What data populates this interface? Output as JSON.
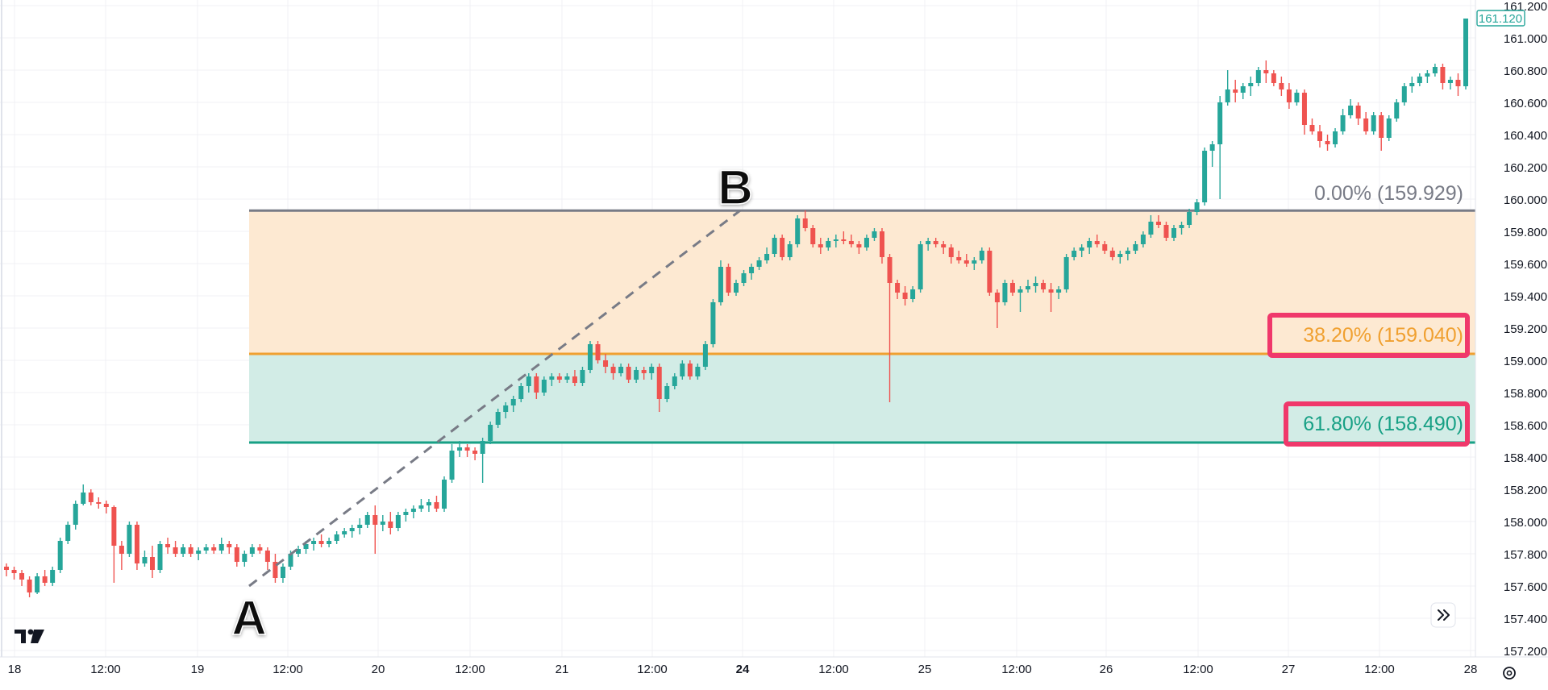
{
  "chart_data": {
    "type": "candlestick",
    "instrument_price_label": "161.120",
    "y_axis": {
      "min": 157.2,
      "max": 161.2,
      "ticks": [
        "161.200",
        "161.000",
        "160.800",
        "160.600",
        "160.400",
        "160.200",
        "160.000",
        "159.800",
        "159.600",
        "159.400",
        "159.200",
        "159.000",
        "158.800",
        "158.600",
        "158.400",
        "158.200",
        "158.000",
        "157.800",
        "157.600",
        "157.400",
        "157.200"
      ]
    },
    "x_axis": {
      "ticks": [
        {
          "label": "18",
          "bold": false
        },
        {
          "label": "12:00",
          "bold": false
        },
        {
          "label": "19",
          "bold": false
        },
        {
          "label": "12:00",
          "bold": false
        },
        {
          "label": "20",
          "bold": false
        },
        {
          "label": "12:00",
          "bold": false
        },
        {
          "label": "21",
          "bold": false
        },
        {
          "label": "12:00",
          "bold": false
        },
        {
          "label": "24",
          "bold": true
        },
        {
          "label": "12:00",
          "bold": false
        },
        {
          "label": "25",
          "bold": false
        },
        {
          "label": "12:00",
          "bold": false
        },
        {
          "label": "26",
          "bold": false
        },
        {
          "label": "12:00",
          "bold": false
        },
        {
          "label": "27",
          "bold": false
        },
        {
          "label": "12:00",
          "bold": false
        },
        {
          "label": "28",
          "bold": false
        }
      ]
    },
    "fibonacci": {
      "point_a": {
        "label": "A",
        "price": 157.6
      },
      "point_b": {
        "label": "B",
        "price": 159.929
      },
      "levels": [
        {
          "label": "0.00% (159.929)",
          "price": 159.929,
          "color": "#787b86",
          "highlight": false
        },
        {
          "label": "38.20% (159.040)",
          "price": 159.04,
          "color": "#f0a030",
          "highlight": true
        },
        {
          "label": "61.80% (158.490)",
          "price": 158.49,
          "color": "#17a085",
          "highlight": true
        }
      ],
      "zone_colors": [
        "#fde9d2",
        "#d2ece6"
      ]
    },
    "colors": {
      "up": "#26a69a",
      "down": "#ef5350",
      "highlight_box": "#f0386b",
      "price_label": "#26a69a"
    },
    "candles": [
      [
        157.72,
        157.74,
        157.66,
        157.7
      ],
      [
        157.7,
        157.72,
        157.64,
        157.68
      ],
      [
        157.68,
        157.7,
        157.6,
        157.64
      ],
      [
        157.64,
        157.66,
        157.53,
        157.56
      ],
      [
        157.56,
        157.68,
        157.55,
        157.66
      ],
      [
        157.66,
        157.7,
        157.6,
        157.62
      ],
      [
        157.62,
        157.72,
        157.6,
        157.7
      ],
      [
        157.7,
        157.9,
        157.68,
        157.88
      ],
      [
        157.88,
        158.0,
        157.86,
        157.98
      ],
      [
        157.98,
        158.13,
        157.95,
        158.11
      ],
      [
        158.11,
        158.23,
        158.1,
        158.18
      ],
      [
        158.18,
        158.2,
        158.1,
        158.12
      ],
      [
        158.12,
        158.15,
        158.08,
        158.11
      ],
      [
        158.11,
        158.13,
        158.05,
        158.09
      ],
      [
        158.09,
        158.1,
        157.62,
        157.85
      ],
      [
        157.85,
        157.88,
        157.7,
        157.8
      ],
      [
        157.8,
        158.0,
        157.78,
        157.98
      ],
      [
        157.98,
        158.0,
        157.7,
        157.74
      ],
      [
        157.74,
        157.82,
        157.72,
        157.78
      ],
      [
        157.78,
        157.85,
        157.65,
        157.7
      ],
      [
        157.7,
        157.88,
        157.68,
        157.86
      ],
      [
        157.86,
        157.9,
        157.8,
        157.84
      ],
      [
        157.84,
        157.88,
        157.78,
        157.8
      ],
      [
        157.8,
        157.86,
        157.78,
        157.84
      ],
      [
        157.84,
        157.86,
        157.78,
        157.8
      ],
      [
        157.8,
        157.84,
        157.76,
        157.82
      ],
      [
        157.82,
        157.86,
        157.8,
        157.84
      ],
      [
        157.84,
        157.86,
        157.8,
        157.82
      ],
      [
        157.82,
        157.9,
        157.8,
        157.86
      ],
      [
        157.86,
        157.88,
        157.8,
        157.84
      ],
      [
        157.84,
        157.86,
        157.72,
        157.75
      ],
      [
        157.75,
        157.82,
        157.72,
        157.8
      ],
      [
        157.8,
        157.86,
        157.78,
        157.84
      ],
      [
        157.84,
        157.86,
        157.8,
        157.82
      ],
      [
        157.82,
        157.84,
        157.7,
        157.75
      ],
      [
        157.75,
        157.8,
        157.62,
        157.65
      ],
      [
        157.65,
        157.74,
        157.62,
        157.72
      ],
      [
        157.72,
        157.82,
        157.7,
        157.8
      ],
      [
        157.8,
        157.85,
        157.78,
        157.83
      ],
      [
        157.83,
        157.88,
        157.8,
        157.86
      ],
      [
        157.86,
        157.9,
        157.82,
        157.88
      ],
      [
        157.88,
        157.92,
        157.84,
        157.86
      ],
      [
        157.86,
        157.9,
        157.84,
        157.88
      ],
      [
        157.88,
        157.94,
        157.86,
        157.92
      ],
      [
        157.92,
        157.96,
        157.9,
        157.94
      ],
      [
        157.94,
        157.98,
        157.9,
        157.96
      ],
      [
        157.96,
        158.02,
        157.92,
        157.98
      ],
      [
        157.98,
        158.06,
        157.96,
        158.04
      ],
      [
        158.04,
        158.1,
        157.8,
        157.98
      ],
      [
        157.98,
        158.04,
        157.94,
        158.0
      ],
      [
        158.0,
        158.06,
        157.92,
        157.96
      ],
      [
        157.96,
        158.06,
        157.94,
        158.04
      ],
      [
        158.04,
        158.08,
        158.0,
        158.06
      ],
      [
        158.06,
        158.1,
        158.02,
        158.08
      ],
      [
        158.08,
        158.14,
        158.06,
        158.1
      ],
      [
        158.1,
        158.14,
        158.06,
        158.12
      ],
      [
        158.12,
        158.16,
        158.06,
        158.08
      ],
      [
        158.08,
        158.28,
        158.06,
        158.26
      ],
      [
        158.26,
        158.48,
        158.24,
        158.44
      ],
      [
        158.44,
        158.5,
        158.4,
        158.46
      ],
      [
        158.46,
        158.48,
        158.4,
        158.44
      ],
      [
        158.44,
        158.46,
        158.38,
        158.42
      ],
      [
        158.42,
        158.52,
        158.24,
        158.5
      ],
      [
        158.5,
        158.62,
        158.48,
        158.6
      ],
      [
        158.6,
        158.7,
        158.58,
        158.68
      ],
      [
        158.68,
        158.74,
        158.64,
        158.72
      ],
      [
        158.72,
        158.78,
        158.68,
        158.76
      ],
      [
        158.76,
        158.86,
        158.74,
        158.84
      ],
      [
        158.84,
        158.92,
        158.8,
        158.9
      ],
      [
        158.9,
        158.92,
        158.76,
        158.8
      ],
      [
        158.8,
        158.9,
        158.78,
        158.88
      ],
      [
        158.88,
        158.92,
        158.84,
        158.9
      ],
      [
        158.9,
        158.92,
        158.86,
        158.88
      ],
      [
        158.88,
        158.92,
        158.86,
        158.9
      ],
      [
        158.9,
        158.94,
        158.84,
        158.86
      ],
      [
        158.86,
        158.96,
        158.84,
        158.94
      ],
      [
        158.94,
        159.12,
        158.92,
        159.1
      ],
      [
        159.1,
        159.12,
        158.98,
        159.0
      ],
      [
        159.0,
        159.04,
        158.92,
        158.96
      ],
      [
        158.96,
        158.98,
        158.88,
        158.92
      ],
      [
        158.92,
        158.98,
        158.9,
        158.96
      ],
      [
        158.96,
        158.98,
        158.86,
        158.88
      ],
      [
        158.88,
        158.96,
        158.86,
        158.94
      ],
      [
        158.94,
        158.96,
        158.88,
        158.92
      ],
      [
        158.92,
        158.98,
        158.88,
        158.96
      ],
      [
        158.96,
        158.98,
        158.68,
        158.76
      ],
      [
        158.76,
        158.86,
        158.74,
        158.84
      ],
      [
        158.84,
        158.92,
        158.82,
        158.9
      ],
      [
        158.9,
        159.0,
        158.88,
        158.98
      ],
      [
        158.98,
        159.0,
        158.88,
        158.9
      ],
      [
        158.9,
        158.98,
        158.88,
        158.96
      ],
      [
        158.96,
        159.12,
        158.94,
        159.1
      ],
      [
        159.1,
        159.38,
        159.08,
        159.36
      ],
      [
        159.36,
        159.62,
        159.34,
        159.58
      ],
      [
        159.58,
        159.6,
        159.4,
        159.42
      ],
      [
        159.42,
        159.5,
        159.4,
        159.48
      ],
      [
        159.48,
        159.56,
        159.46,
        159.54
      ],
      [
        159.54,
        159.6,
        159.5,
        159.58
      ],
      [
        159.58,
        159.64,
        159.56,
        159.62
      ],
      [
        159.62,
        159.7,
        159.6,
        159.66
      ],
      [
        159.66,
        159.78,
        159.64,
        159.76
      ],
      [
        159.76,
        159.78,
        159.62,
        159.64
      ],
      [
        159.64,
        159.74,
        159.62,
        159.72
      ],
      [
        159.72,
        159.9,
        159.7,
        159.88
      ],
      [
        159.88,
        159.93,
        159.8,
        159.82
      ],
      [
        159.82,
        159.84,
        159.7,
        159.72
      ],
      [
        159.72,
        159.76,
        159.66,
        159.7
      ],
      [
        159.7,
        159.76,
        159.68,
        159.74
      ],
      [
        159.74,
        159.78,
        159.7,
        159.75
      ],
      [
        159.75,
        159.8,
        159.72,
        159.74
      ],
      [
        159.74,
        159.78,
        159.7,
        159.72
      ],
      [
        159.72,
        159.74,
        159.66,
        159.7
      ],
      [
        159.7,
        159.78,
        159.68,
        159.76
      ],
      [
        159.76,
        159.82,
        159.74,
        159.8
      ],
      [
        159.8,
        159.82,
        159.6,
        159.64
      ],
      [
        159.64,
        159.66,
        158.74,
        159.48
      ],
      [
        159.48,
        159.5,
        159.38,
        159.42
      ],
      [
        159.42,
        159.46,
        159.34,
        159.38
      ],
      [
        159.38,
        159.46,
        159.36,
        159.44
      ],
      [
        159.44,
        159.74,
        159.42,
        159.72
      ],
      [
        159.72,
        159.76,
        159.68,
        159.74
      ],
      [
        159.74,
        159.76,
        159.7,
        159.72
      ],
      [
        159.72,
        159.74,
        159.66,
        159.7
      ],
      [
        159.7,
        159.72,
        159.6,
        159.64
      ],
      [
        159.64,
        159.68,
        159.6,
        159.62
      ],
      [
        159.62,
        159.66,
        159.58,
        159.6
      ],
      [
        159.6,
        159.64,
        159.56,
        159.62
      ],
      [
        159.62,
        159.7,
        159.6,
        159.68
      ],
      [
        159.68,
        159.7,
        159.4,
        159.42
      ],
      [
        159.42,
        159.44,
        159.2,
        159.36
      ],
      [
        159.36,
        159.5,
        159.34,
        159.48
      ],
      [
        159.48,
        159.5,
        159.4,
        159.42
      ],
      [
        159.42,
        159.46,
        159.3,
        159.44
      ],
      [
        159.44,
        159.5,
        159.42,
        159.46
      ],
      [
        159.46,
        159.52,
        159.42,
        159.48
      ],
      [
        159.48,
        159.5,
        159.42,
        159.44
      ],
      [
        159.44,
        159.48,
        159.3,
        159.42
      ],
      [
        159.42,
        159.46,
        159.38,
        159.44
      ],
      [
        159.44,
        159.66,
        159.42,
        159.64
      ],
      [
        159.64,
        159.7,
        159.62,
        159.68
      ],
      [
        159.68,
        159.72,
        159.64,
        159.7
      ],
      [
        159.7,
        159.76,
        159.66,
        159.74
      ],
      [
        159.74,
        159.78,
        159.7,
        159.72
      ],
      [
        159.72,
        159.74,
        159.66,
        159.68
      ],
      [
        159.68,
        159.7,
        159.62,
        159.64
      ],
      [
        159.64,
        159.68,
        159.6,
        159.66
      ],
      [
        159.66,
        159.7,
        159.62,
        159.68
      ],
      [
        159.68,
        159.74,
        159.66,
        159.72
      ],
      [
        159.72,
        159.8,
        159.7,
        159.78
      ],
      [
        159.78,
        159.9,
        159.76,
        159.86
      ],
      [
        159.86,
        159.9,
        159.82,
        159.84
      ],
      [
        159.84,
        159.86,
        159.74,
        159.76
      ],
      [
        159.76,
        159.84,
        159.74,
        159.82
      ],
      [
        159.82,
        159.86,
        159.78,
        159.84
      ],
      [
        159.84,
        159.94,
        159.82,
        159.92
      ],
      [
        159.92,
        160.0,
        159.9,
        159.98
      ],
      [
        159.98,
        160.32,
        159.96,
        160.3
      ],
      [
        160.3,
        160.36,
        160.2,
        160.34
      ],
      [
        160.34,
        160.64,
        160.0,
        160.6
      ],
      [
        160.6,
        160.8,
        160.58,
        160.68
      ],
      [
        160.68,
        160.74,
        160.6,
        160.66
      ],
      [
        160.66,
        160.72,
        160.62,
        160.7
      ],
      [
        160.7,
        160.76,
        160.64,
        160.72
      ],
      [
        160.72,
        160.82,
        160.7,
        160.8
      ],
      [
        160.8,
        160.86,
        160.72,
        160.78
      ],
      [
        160.78,
        160.8,
        160.7,
        160.72
      ],
      [
        160.72,
        160.76,
        160.64,
        160.68
      ],
      [
        160.68,
        160.72,
        160.56,
        160.6
      ],
      [
        160.6,
        160.68,
        160.58,
        160.66
      ],
      [
        160.66,
        160.68,
        160.4,
        160.46
      ],
      [
        160.46,
        160.5,
        160.4,
        160.42
      ],
      [
        160.42,
        160.46,
        160.32,
        160.36
      ],
      [
        160.36,
        160.4,
        160.3,
        160.34
      ],
      [
        160.34,
        160.44,
        160.32,
        160.42
      ],
      [
        160.42,
        160.56,
        160.4,
        160.52
      ],
      [
        160.52,
        160.62,
        160.5,
        160.58
      ],
      [
        160.58,
        160.6,
        160.46,
        160.5
      ],
      [
        160.5,
        160.54,
        160.4,
        160.42
      ],
      [
        160.42,
        160.54,
        160.4,
        160.52
      ],
      [
        160.52,
        160.54,
        160.3,
        160.38
      ],
      [
        160.38,
        160.52,
        160.36,
        160.5
      ],
      [
        160.5,
        160.62,
        160.48,
        160.6
      ],
      [
        160.6,
        160.72,
        160.58,
        160.7
      ],
      [
        160.7,
        160.76,
        160.66,
        160.72
      ],
      [
        160.72,
        160.78,
        160.7,
        160.76
      ],
      [
        160.76,
        160.8,
        160.72,
        160.78
      ],
      [
        160.78,
        160.84,
        160.76,
        160.82
      ],
      [
        160.82,
        160.84,
        160.68,
        160.72
      ],
      [
        160.72,
        160.76,
        160.68,
        160.74
      ],
      [
        160.74,
        160.78,
        160.64,
        160.7
      ],
      [
        160.7,
        161.12,
        160.68,
        161.12
      ]
    ]
  }
}
